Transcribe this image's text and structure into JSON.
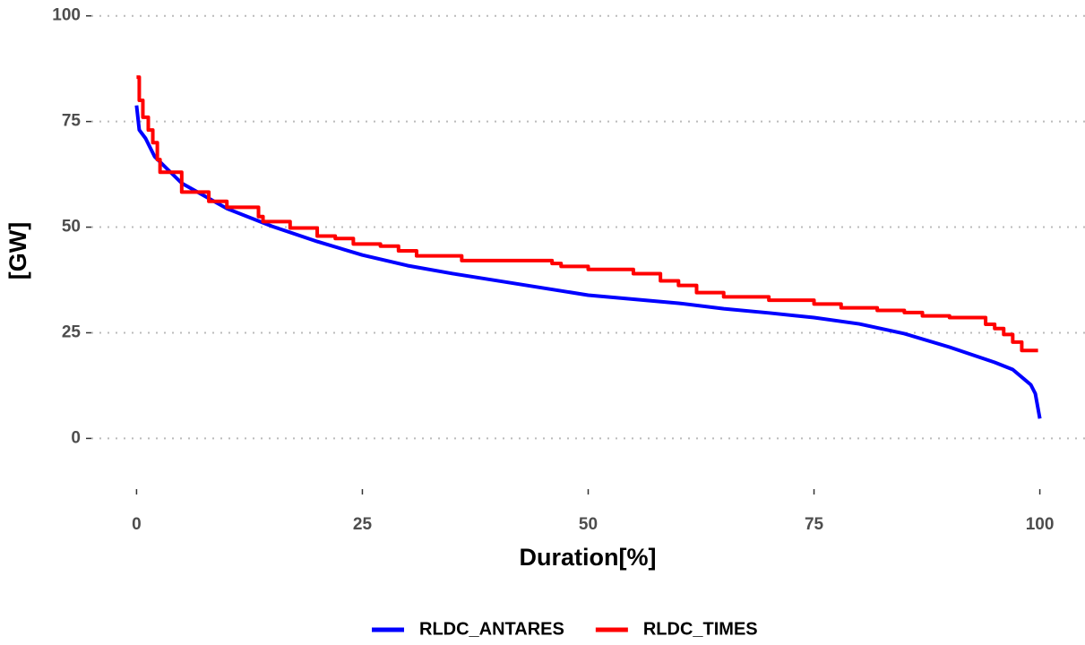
{
  "chart_data": {
    "type": "line",
    "x_label": "Duration[%]",
    "y_label": "[GW]",
    "xlim": [
      -5,
      105
    ],
    "ylim": [
      -12,
      101
    ],
    "xticks": [
      0,
      25,
      50,
      75,
      100
    ],
    "yticks": [
      0,
      25,
      50,
      75,
      100
    ],
    "grid": "horizontal",
    "legend": "bottom",
    "series": [
      {
        "name": "RLDC_ANTARES",
        "color": "#0000ff",
        "x": [
          0,
          0.3,
          1,
          2,
          5,
          10,
          15,
          20,
          25,
          30,
          35,
          40,
          50,
          60,
          65,
          70,
          75,
          80,
          85,
          90,
          95,
          97,
          99,
          99.5,
          100
        ],
        "values": [
          78.8,
          73,
          71,
          66.7,
          60.4,
          54.4,
          50.2,
          46.6,
          43.4,
          40.9,
          39,
          37.3,
          33.9,
          32,
          30.7,
          29.7,
          28.6,
          27.1,
          24.8,
          21.6,
          18,
          16.3,
          12.7,
          10.6,
          4.7
        ]
      },
      {
        "name": "RLDC_TIMES",
        "color": "#ff0000",
        "x": [
          0,
          0.3,
          0.3,
          0.7,
          0.7,
          1.3,
          1.3,
          1.8,
          1.8,
          2.3,
          2.3,
          2.6,
          2.6,
          5,
          5,
          8,
          8,
          10,
          10,
          13.5,
          13.5,
          14,
          14,
          17,
          17,
          20,
          20,
          22,
          22,
          24,
          24,
          27,
          27,
          29,
          29,
          31,
          31,
          36,
          36,
          46,
          46,
          47,
          47,
          50,
          50,
          55,
          55,
          58,
          58,
          60,
          60,
          62,
          62,
          65,
          65,
          70,
          70,
          75,
          75,
          78,
          78,
          82,
          82,
          85,
          85,
          87,
          87,
          90,
          90,
          94,
          94,
          95,
          95,
          96,
          96,
          97,
          97,
          98,
          98,
          99.8
        ],
        "values": [
          85.5,
          85.5,
          80,
          80,
          76,
          76,
          73,
          73,
          70,
          70,
          66,
          66,
          63,
          63,
          58.3,
          58.3,
          56.1,
          56.1,
          54.7,
          54.7,
          52.5,
          52.5,
          51.3,
          51.3,
          49.8,
          49.8,
          47.9,
          47.9,
          47.3,
          47.3,
          46,
          46,
          45.5,
          45.5,
          44.4,
          44.4,
          43.2,
          43.2,
          42.1,
          42.1,
          41.4,
          41.4,
          40.7,
          40.7,
          40,
          40,
          39,
          39,
          37.3,
          37.3,
          36.2,
          36.2,
          34.5,
          34.5,
          33.5,
          33.5,
          32.7,
          32.7,
          31.8,
          31.8,
          30.9,
          30.9,
          30.3,
          30.3,
          29.8,
          29.8,
          29,
          29,
          28.6,
          28.6,
          27,
          27,
          26,
          26,
          24.6,
          24.6,
          22.8,
          22.8,
          20.8,
          20.8
        ]
      }
    ]
  }
}
